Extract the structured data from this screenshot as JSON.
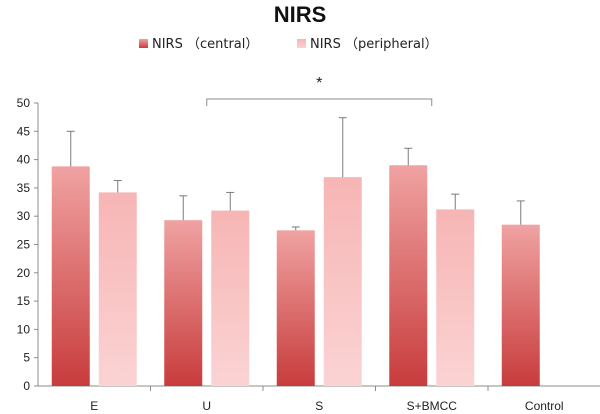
{
  "chart_data": {
    "type": "bar",
    "title": "NIRS",
    "xlabel": "",
    "ylabel": "",
    "categories": [
      "E",
      "U",
      "S",
      "S+BMCC",
      "Control"
    ],
    "ylim": [
      0,
      50
    ],
    "yticks": [
      0,
      5,
      10,
      15,
      20,
      25,
      30,
      35,
      40,
      45,
      50
    ],
    "legend_position": "top",
    "grid": false,
    "series": [
      {
        "name": "NIRS （central）",
        "color_top": "#f0a2a2",
        "color_bottom": "#c83c3c",
        "values": [
          38.8,
          29.3,
          27.5,
          39.0,
          28.5
        ],
        "error": [
          6.2,
          4.3,
          0.6,
          3.0,
          4.2
        ]
      },
      {
        "name": "NIRS （peripheral）",
        "color_top": "#f7b5b5",
        "color_bottom": "#fbd3d3",
        "values": [
          34.2,
          31.0,
          36.9,
          31.2,
          null
        ],
        "error": [
          2.1,
          3.2,
          10.5,
          2.7,
          null
        ]
      }
    ],
    "annotations": [
      {
        "text": "*",
        "from_category": "U",
        "to_category": "S+BMCC"
      }
    ]
  }
}
